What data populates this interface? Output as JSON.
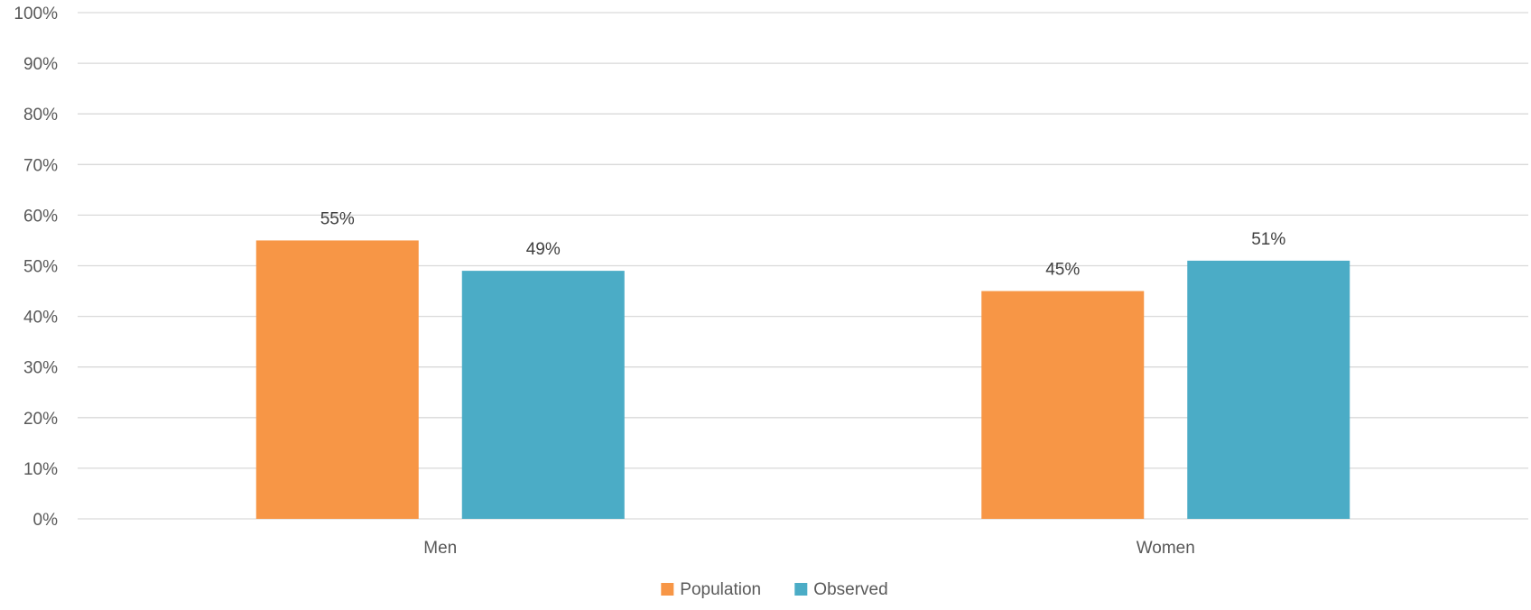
{
  "chart_data": {
    "type": "bar",
    "categories": [
      "Men",
      "Women"
    ],
    "series": [
      {
        "name": "Population",
        "color": "#F79646",
        "values": [
          55,
          45
        ],
        "labels": [
          "55%",
          "45%"
        ]
      },
      {
        "name": "Observed",
        "color": "#4BACC6",
        "values": [
          49,
          51
        ],
        "labels": [
          "49%",
          "51%"
        ]
      }
    ],
    "ylim": [
      0,
      100
    ],
    "yticks": [
      0,
      10,
      20,
      30,
      40,
      50,
      60,
      70,
      80,
      90,
      100
    ],
    "ytick_labels": [
      "0%",
      "10%",
      "20%",
      "30%",
      "40%",
      "50%",
      "60%",
      "70%",
      "80%",
      "90%",
      "100%"
    ],
    "title": "",
    "xlabel": "",
    "ylabel": "",
    "grid": true,
    "legend_position": "bottom"
  }
}
